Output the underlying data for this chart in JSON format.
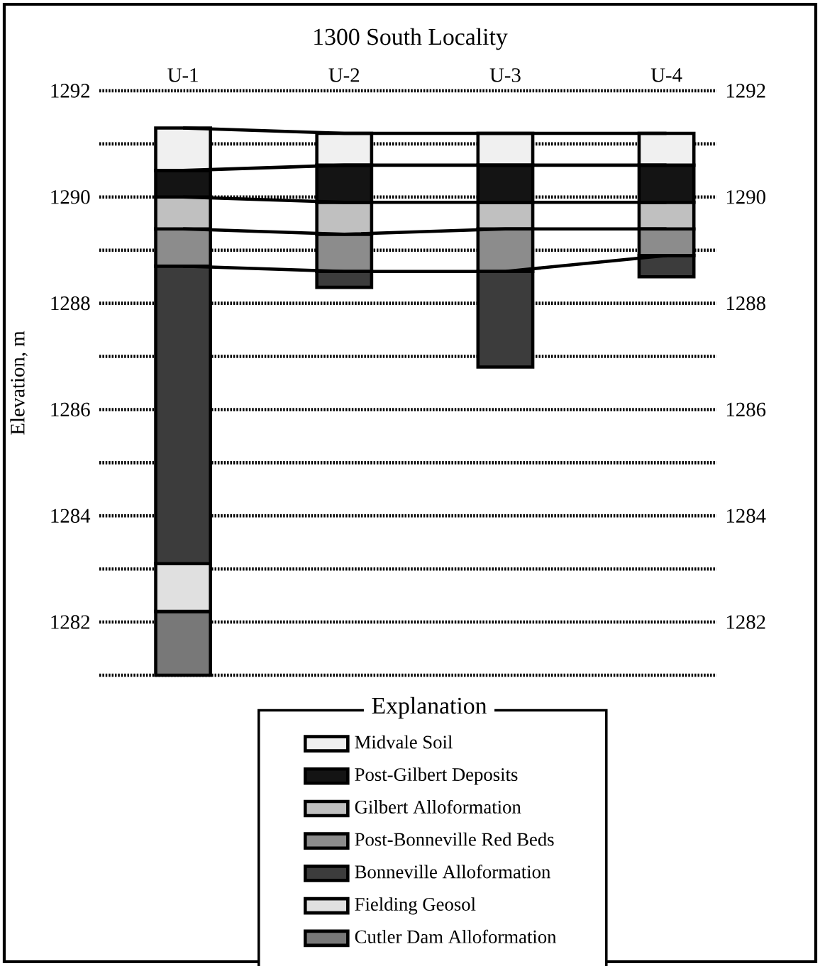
{
  "chart_data": {
    "type": "bar",
    "title": "1300 South Locality",
    "ylabel": "Elevation, m",
    "legend_title": "Explanation",
    "categories": [
      "U-1",
      "U-2",
      "U-3",
      "U-4"
    ],
    "series": [
      {
        "name": "Cutler Dam Alloformation",
        "color": "#787878",
        "base": [
          1281,
          null,
          null,
          null
        ],
        "values": [
          1.2,
          null,
          null,
          null
        ]
      },
      {
        "name": "Fielding Geosol",
        "color": "#e0e0e0",
        "base": [
          1282.2,
          null,
          null,
          null
        ],
        "values": [
          0.9,
          null,
          null,
          null
        ]
      },
      {
        "name": "Bonneville Alloformation",
        "color": "#3c3c3c",
        "base": [
          1283.1,
          1288.3,
          1286.8,
          1288.5
        ],
        "values": [
          5.6,
          0.3,
          1.8,
          0.4
        ]
      },
      {
        "name": "Post-Bonneville Red Beds",
        "color": "#8c8c8c",
        "base": [
          1288.7,
          1288.6,
          1288.6,
          1288.9
        ],
        "values": [
          0.7,
          0.7,
          0.8,
          0.5
        ]
      },
      {
        "name": "Gilbert Alloformation",
        "color": "#c0c0c0",
        "base": [
          1289.4,
          1289.3,
          1289.4,
          1289.4
        ],
        "values": [
          0.6,
          0.6,
          0.5,
          0.5
        ]
      },
      {
        "name": "Post-Gilbert Deposits",
        "color": "#141414",
        "base": [
          1290.0,
          1289.9,
          1289.9,
          1289.9
        ],
        "values": [
          0.5,
          0.7,
          0.7,
          0.7
        ]
      },
      {
        "name": "Midvale Soil",
        "color": "#f0f0f0",
        "base": [
          1290.5,
          1290.6,
          1290.6,
          1290.6
        ],
        "values": [
          0.8,
          0.6,
          0.6,
          0.6
        ]
      },
      {
        "type": "line",
        "color": "#000000",
        "values": [
          1291.3,
          1291.2,
          1291.2,
          1291.2
        ]
      },
      {
        "type": "line",
        "color": "#000000",
        "values": [
          1290.5,
          1290.6,
          1290.6,
          1290.6
        ]
      },
      {
        "type": "line",
        "color": "#000000",
        "values": [
          1290.0,
          1289.9,
          1289.9,
          1289.9
        ]
      },
      {
        "type": "line",
        "color": "#000000",
        "values": [
          1289.4,
          1289.3,
          1289.4,
          1289.4
        ]
      },
      {
        "type": "line",
        "color": "#000000",
        "values": [
          1288.7,
          1288.6,
          1288.6,
          1288.9
        ]
      }
    ],
    "ylim": [
      1281,
      1292
    ],
    "yticks": [
      {
        "value": 1281,
        "label": null
      },
      1282,
      {
        "value": 1283,
        "label": null
      },
      1284,
      {
        "value": 1285,
        "label": null
      },
      1286,
      {
        "value": 1287,
        "label": null
      },
      1288,
      {
        "value": 1289,
        "label": null
      },
      1290,
      {
        "value": 1291,
        "label": null
      },
      1292
    ],
    "y2lim": [
      1281,
      1292
    ],
    "y2ticks": [
      1282,
      1284,
      1286,
      1288,
      1290,
      1292
    ],
    "grid": "y",
    "legend": "bottom"
  }
}
